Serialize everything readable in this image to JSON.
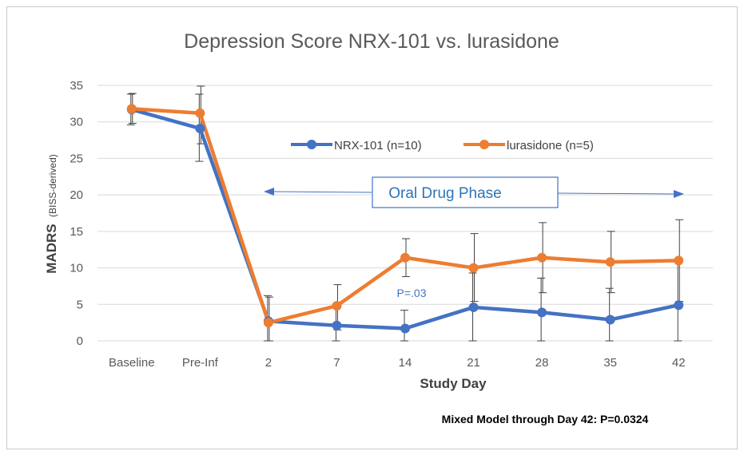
{
  "chart_data": {
    "type": "line",
    "title": "Depression Score NRX-101 vs. lurasidone",
    "xlabel": "Study Day",
    "ylabel_main": "MADRS",
    "ylabel_sub": "(BISS-derived)",
    "ylim": [
      0,
      35
    ],
    "yticks": [
      0,
      5,
      10,
      15,
      20,
      25,
      30,
      35
    ],
    "grid": true,
    "legend_position": "top-right",
    "categories": [
      "Baseline",
      "Pre-Inf",
      "2",
      "7",
      "14",
      "21",
      "28",
      "35",
      "42"
    ],
    "series": [
      {
        "name": "NRX-101 (n=10)",
        "color": "#4472C4",
        "values": [
          31.7,
          29.1,
          2.7,
          2.1,
          1.7,
          4.6,
          3.9,
          2.9,
          4.9
        ],
        "error_low": [
          29.6,
          24.6,
          0.0,
          0.0,
          0.0,
          0.0,
          0.0,
          0.0,
          0.0
        ],
        "error_high": [
          33.8,
          33.8,
          6.2,
          4.8,
          4.2,
          9.3,
          8.6,
          7.2,
          10.8
        ]
      },
      {
        "name": "lurasidone (n=5)",
        "color": "#ED7D31",
        "values": [
          31.8,
          31.2,
          2.5,
          4.8,
          11.4,
          10.0,
          11.4,
          10.8,
          11.0
        ],
        "error_low": [
          29.8,
          27.0,
          0.0,
          1.5,
          8.8,
          5.4,
          6.6,
          6.6,
          5.4
        ],
        "error_high": [
          33.9,
          34.9,
          6.0,
          7.7,
          14.0,
          14.7,
          16.2,
          15.0,
          16.6
        ]
      }
    ],
    "annotations": {
      "phase_label": "Oral Drug Phase",
      "p_value": "P=.03",
      "footnote": "Mixed Model through Day 42: P=0.0324"
    }
  }
}
